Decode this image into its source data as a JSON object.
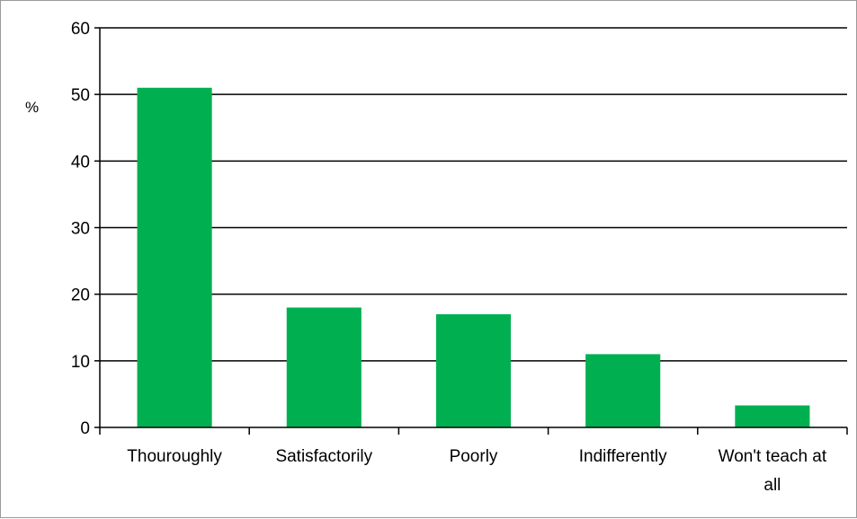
{
  "chart_data": {
    "type": "bar",
    "categories": [
      "Thouroughly",
      "Satisfactorily",
      "Poorly",
      "Indifferently",
      "Won't teach at all"
    ],
    "values": [
      51,
      18,
      17,
      11,
      3.3
    ],
    "title": "",
    "xlabel": "",
    "ylabel": "%",
    "ylim": [
      0,
      60
    ],
    "yticks": [
      0,
      10,
      20,
      30,
      40,
      50,
      60
    ],
    "grid": true,
    "legend": "none",
    "bar_color": "#00b050"
  }
}
